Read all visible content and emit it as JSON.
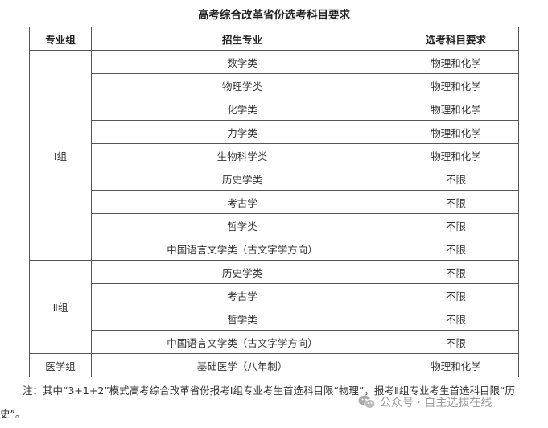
{
  "title": "高考综合改革省份选考科目要求",
  "headers": [
    "专业组",
    "招生专业",
    "选考科目要求"
  ],
  "groups": [
    {
      "name": "Ⅰ组",
      "rows": [
        [
          "数学类",
          "物理和化学"
        ],
        [
          "物理学类",
          "物理和化学"
        ],
        [
          "化学类",
          "物理和化学"
        ],
        [
          "力学类",
          "物理和化学"
        ],
        [
          "生物科学类",
          "物理和化学"
        ],
        [
          "历史学类",
          "不限"
        ],
        [
          "考古学",
          "不限"
        ],
        [
          "哲学类",
          "不限"
        ],
        [
          "中国语言文学类（古文字学方向）",
          "不限"
        ]
      ]
    },
    {
      "name": "Ⅱ组",
      "rows": [
        [
          "历史学类",
          "不限"
        ],
        [
          "考古学",
          "不限"
        ],
        [
          "哲学类",
          "不限"
        ],
        [
          "中国语言文学类（古文字学方向）",
          "不限"
        ]
      ]
    },
    {
      "name": "医学组",
      "rows": [
        [
          "基础医学（八年制）",
          "物理和化学"
        ]
      ]
    }
  ],
  "note": "注：其中“3+1+2”模式高考综合改革省份报考Ⅰ组专业考生首选科目限“物理”，报考Ⅱ组专业考生首选科目限“历史”。",
  "watermark": {
    "icon": "wechat-icon",
    "text": "公众号 · 自主选拔在线"
  }
}
